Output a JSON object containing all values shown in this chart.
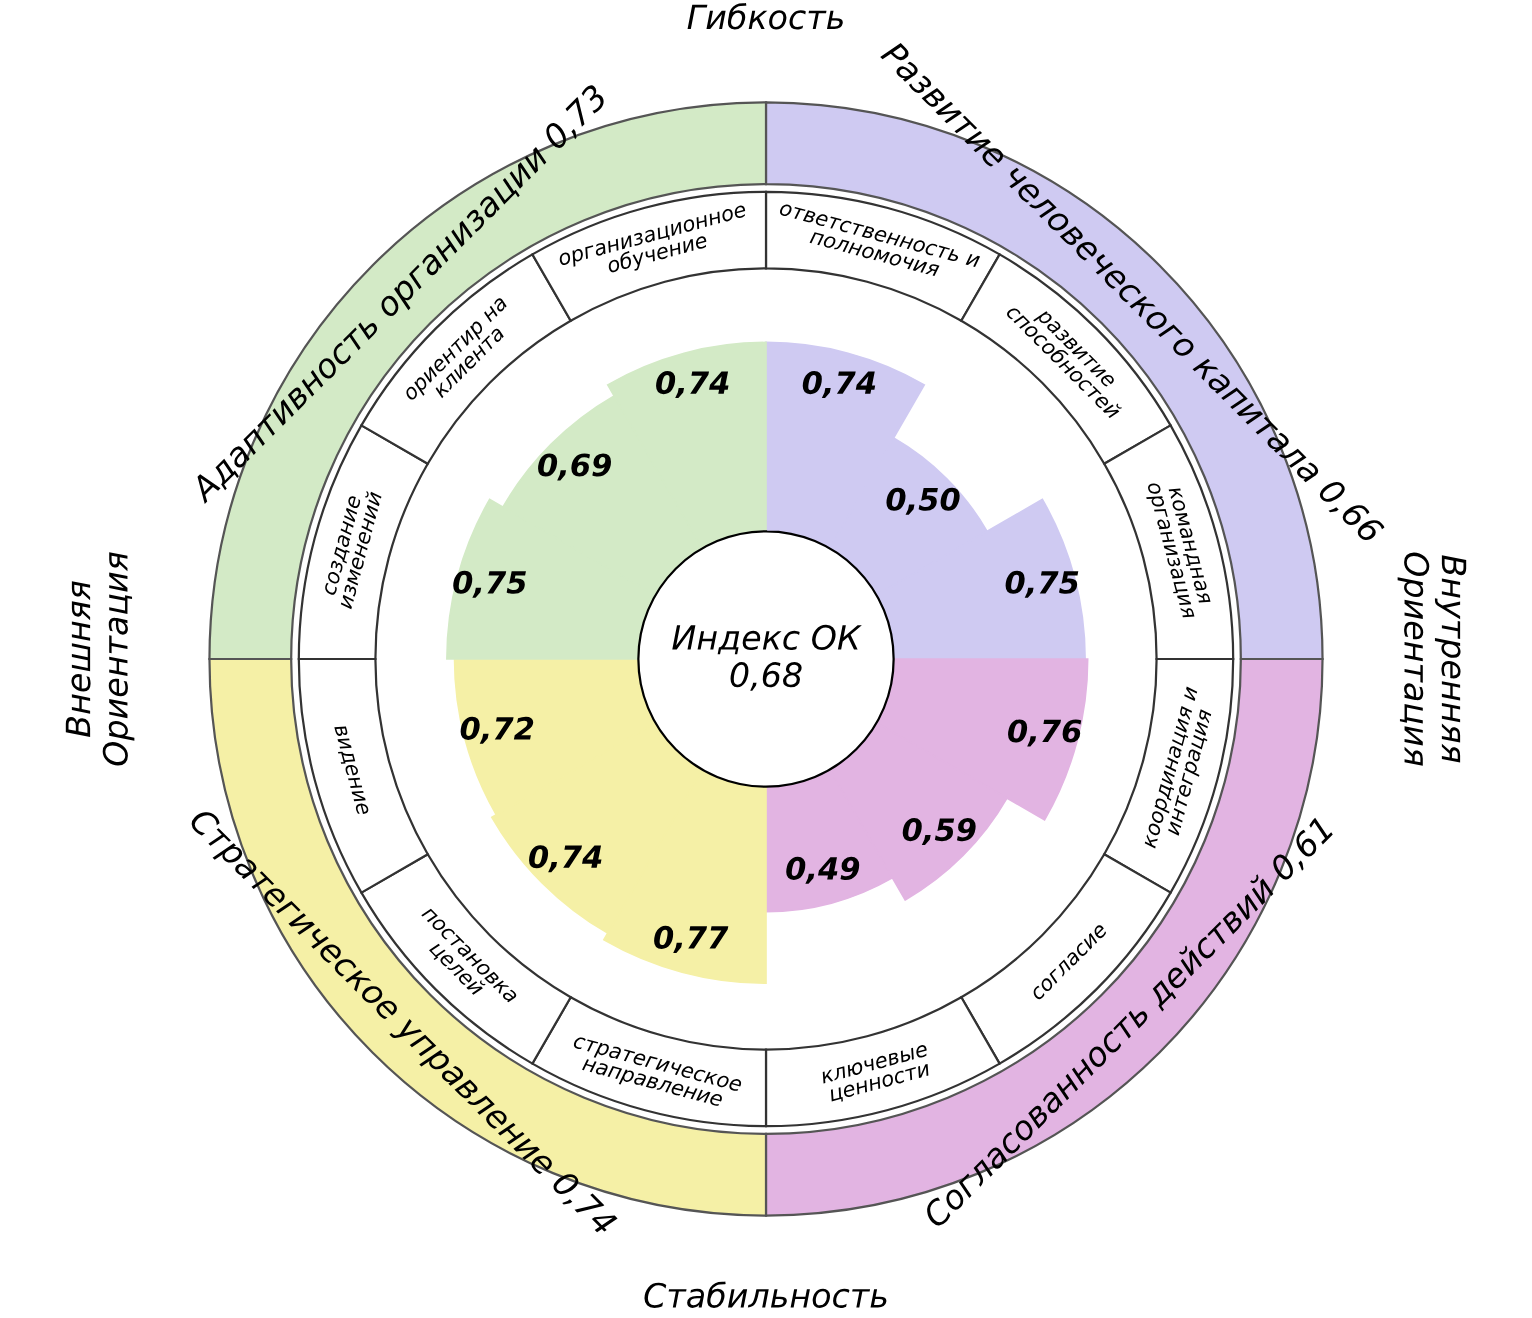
{
  "chart_data": {
    "type": "other",
    "categories": [
      "ответственность и полномочия",
      "развитие способностей",
      "командная организация",
      "координация и интеграция",
      "согласие",
      "ключевые ценности",
      "стратегическое направление",
      "постановка целей",
      "видение",
      "создание изменений",
      "ориентир на клиента",
      "организационное обучение"
    ],
    "series": [
      {
        "name": "Развитие человеческого капитала 0,66",
        "color": "#cfcaf2",
        "values": [
          0.74,
          0.5,
          0.75,
          null,
          null,
          null,
          null,
          null,
          null,
          null,
          null,
          null
        ],
        "value_labels": [
          "0,74",
          "0,50",
          "0,75",
          null,
          null,
          null,
          null,
          null,
          null,
          null,
          null,
          null
        ]
      },
      {
        "name": "Согласованность действий 0,61",
        "color": "#e2b4e2",
        "values": [
          null,
          null,
          null,
          0.76,
          0.59,
          0.49,
          null,
          null,
          null,
          null,
          null,
          null
        ],
        "value_labels": [
          null,
          null,
          null,
          "0,76",
          "0,59",
          "0,49",
          null,
          null,
          null,
          null,
          null,
          null
        ]
      },
      {
        "name": "Стратегическое управление 0,74",
        "color": "#f5f0a6",
        "values": [
          null,
          null,
          null,
          null,
          null,
          null,
          0.77,
          0.74,
          0.72,
          null,
          null,
          null
        ],
        "value_labels": [
          null,
          null,
          null,
          null,
          null,
          null,
          "0,77",
          "0,74",
          "0,72",
          null,
          null,
          null
        ]
      },
      {
        "name": "Адаптивность организации 0,73",
        "color": "#d3eac6",
        "values": [
          null,
          null,
          null,
          null,
          null,
          null,
          null,
          null,
          null,
          0.75,
          0.69,
          0.74
        ],
        "value_labels": [
          null,
          null,
          null,
          null,
          null,
          null,
          null,
          null,
          null,
          "0,75",
          "0,69",
          "0,74"
        ]
      }
    ],
    "annotations": [
      "Индекс ОК 0,68",
      "Гибкость",
      "Внутренняя Ориентация",
      "Стабильность",
      "Внешняя Ориентация"
    ],
    "legend": false
  }
}
